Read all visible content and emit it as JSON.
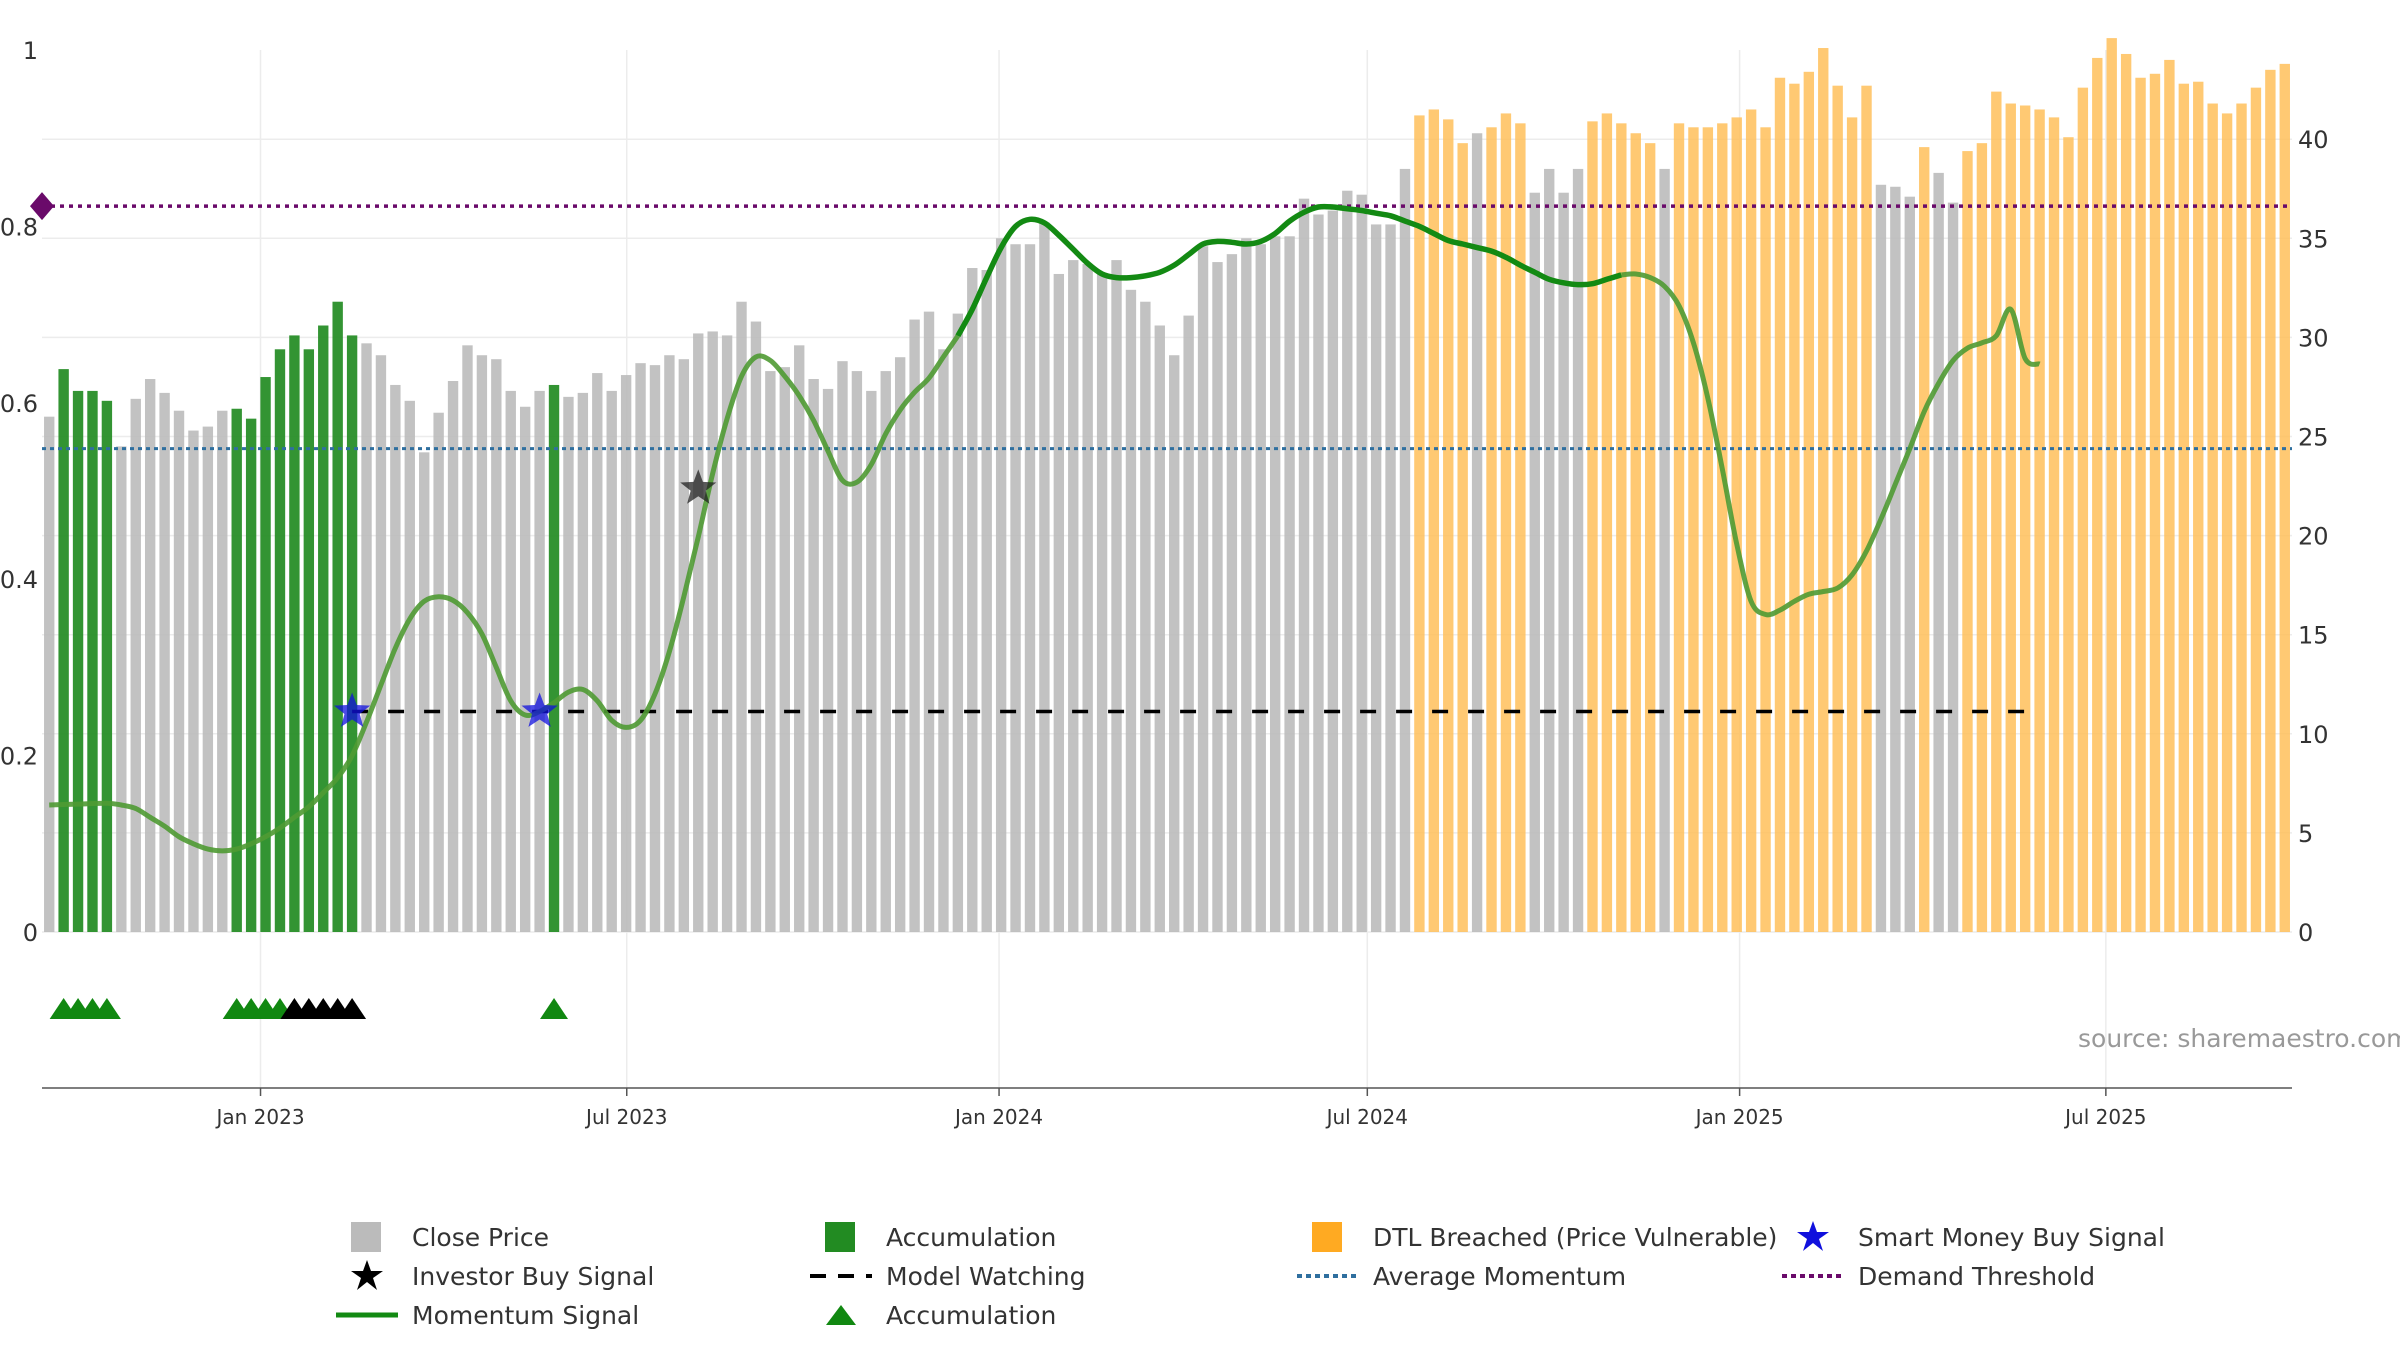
{
  "chart_data": {
    "type": "bar",
    "source_label": "source: sharemaestro.com",
    "left_axis": {
      "ylim": [
        0,
        1
      ],
      "ticks": [
        "0",
        "0.2",
        "0.4",
        "0.6",
        "0.8",
        "1"
      ]
    },
    "right_axis": {
      "ylim": [
        0,
        44.5
      ],
      "ticks": [
        "0",
        "5",
        "10",
        "15",
        "20",
        "25",
        "30",
        "35",
        "40"
      ]
    },
    "x_axis": {
      "start": "2022-09-15",
      "end": "2025-10-01",
      "ticks": [
        {
          "date": "2023-01-01",
          "label": "Jan 2023"
        },
        {
          "date": "2023-07-01",
          "label": "Jul 2023"
        },
        {
          "date": "2024-01-01",
          "label": "Jan 2024"
        },
        {
          "date": "2024-07-01",
          "label": "Jul 2024"
        },
        {
          "date": "2025-01-01",
          "label": "Jan 2025"
        },
        {
          "date": "2025-07-01",
          "label": "Jul 2025"
        }
      ]
    },
    "colors": {
      "close": "#bbbbbb",
      "accumulation": "#228b22",
      "dtl": "#ffc05a",
      "momentum": "#138a13",
      "momentum_faded": "#4f9a33",
      "model_watching": "#000000",
      "average_momentum": "#2f6f9f",
      "demand_threshold": "#6a0a6a",
      "smart_money": "#1010dd",
      "investor": "#222222",
      "triangle": "#118811"
    },
    "bar_states": [
      "close",
      "accumulation",
      "dtl"
    ],
    "bars": [
      [
        0,
        26,
        0
      ],
      [
        1,
        28.4,
        1
      ],
      [
        2,
        27.3,
        1
      ],
      [
        3,
        27.3,
        1
      ],
      [
        4,
        26.8,
        1
      ],
      [
        5,
        24.5,
        0
      ],
      [
        6,
        26.9,
        0
      ],
      [
        7,
        27.9,
        0
      ],
      [
        8,
        27.2,
        0
      ],
      [
        9,
        26.3,
        0
      ],
      [
        10,
        25.3,
        0
      ],
      [
        11,
        25.5,
        0
      ],
      [
        12,
        26.3,
        0
      ],
      [
        13,
        26.4,
        1
      ],
      [
        14,
        25.9,
        1
      ],
      [
        15,
        28,
        1
      ],
      [
        16,
        29.4,
        1
      ],
      [
        17,
        30.1,
        1
      ],
      [
        18,
        29.4,
        1
      ],
      [
        19,
        30.6,
        1
      ],
      [
        20,
        31.8,
        1
      ],
      [
        21,
        30.1,
        1
      ],
      [
        22,
        29.7,
        0
      ],
      [
        23,
        29.1,
        0
      ],
      [
        24,
        27.6,
        0
      ],
      [
        25,
        26.8,
        0
      ],
      [
        26,
        24.2,
        0
      ],
      [
        27,
        26.2,
        0
      ],
      [
        28,
        27.8,
        0
      ],
      [
        29,
        29.6,
        0
      ],
      [
        30,
        29.1,
        0
      ],
      [
        31,
        28.9,
        0
      ],
      [
        32,
        27.3,
        0
      ],
      [
        33,
        26.5,
        0
      ],
      [
        34,
        27.3,
        0
      ],
      [
        35,
        27.6,
        1
      ],
      [
        36,
        27,
        0
      ],
      [
        37,
        27.2,
        0
      ],
      [
        38,
        28.2,
        0
      ],
      [
        39,
        27.3,
        0
      ],
      [
        40,
        28.1,
        0
      ],
      [
        41,
        28.7,
        0
      ],
      [
        42,
        28.6,
        0
      ],
      [
        43,
        29.1,
        0
      ],
      [
        44,
        28.9,
        0
      ],
      [
        45,
        30.2,
        0
      ],
      [
        46,
        30.3,
        0
      ],
      [
        47,
        30.1,
        0
      ],
      [
        48,
        31.8,
        0
      ],
      [
        49,
        30.8,
        0
      ],
      [
        50,
        28.3,
        0
      ],
      [
        51,
        28.5,
        0
      ],
      [
        52,
        29.6,
        0
      ],
      [
        53,
        27.9,
        0
      ],
      [
        54,
        27.4,
        0
      ],
      [
        55,
        28.8,
        0
      ],
      [
        56,
        28.3,
        0
      ],
      [
        57,
        27.3,
        0
      ],
      [
        58,
        28.3,
        0
      ],
      [
        59,
        29,
        0
      ],
      [
        60,
        30.9,
        0
      ],
      [
        61,
        31.3,
        0
      ],
      [
        62,
        29.4,
        0
      ],
      [
        63,
        31.2,
        0
      ],
      [
        64,
        33.5,
        0
      ],
      [
        65,
        33.4,
        0
      ],
      [
        66,
        35,
        0
      ],
      [
        67,
        34.7,
        0
      ],
      [
        68,
        34.7,
        0
      ],
      [
        69,
        35.8,
        0
      ],
      [
        70,
        33.2,
        0
      ],
      [
        71,
        33.9,
        0
      ],
      [
        72,
        33.7,
        0
      ],
      [
        73,
        33.2,
        0
      ],
      [
        74,
        33.9,
        0
      ],
      [
        75,
        32.4,
        0
      ],
      [
        76,
        31.8,
        0
      ],
      [
        77,
        30.6,
        0
      ],
      [
        78,
        29.1,
        0
      ],
      [
        79,
        31.1,
        0
      ],
      [
        80,
        34.6,
        0
      ],
      [
        81,
        33.8,
        0
      ],
      [
        82,
        34.2,
        0
      ],
      [
        83,
        35,
        0
      ],
      [
        84,
        34.7,
        0
      ],
      [
        85,
        35.1,
        0
      ],
      [
        86,
        35.1,
        0
      ],
      [
        87,
        37,
        0
      ],
      [
        88,
        36.2,
        0
      ],
      [
        89,
        36.4,
        0
      ],
      [
        90,
        37.4,
        0
      ],
      [
        91,
        37.2,
        0
      ],
      [
        92,
        35.7,
        0
      ],
      [
        93,
        35.7,
        0
      ],
      [
        94,
        38.5,
        0
      ],
      [
        95,
        41.2,
        2
      ],
      [
        96,
        41.5,
        2
      ],
      [
        97,
        41,
        2
      ],
      [
        98,
        39.8,
        2
      ],
      [
        99,
        40.3,
        0
      ],
      [
        100,
        40.6,
        2
      ],
      [
        101,
        41.3,
        2
      ],
      [
        102,
        40.8,
        2
      ],
      [
        103,
        37.3,
        0
      ],
      [
        104,
        38.5,
        0
      ],
      [
        105,
        37.3,
        0
      ],
      [
        106,
        38.5,
        0
      ],
      [
        107,
        40.9,
        2
      ],
      [
        108,
        41.3,
        2
      ],
      [
        109,
        40.8,
        2
      ],
      [
        110,
        40.3,
        2
      ],
      [
        111,
        39.8,
        2
      ],
      [
        112,
        38.5,
        0
      ],
      [
        113,
        40.8,
        2
      ],
      [
        114,
        40.6,
        2
      ],
      [
        115,
        40.6,
        2
      ],
      [
        116,
        40.8,
        2
      ],
      [
        117,
        41.1,
        2
      ],
      [
        118,
        41.5,
        2
      ],
      [
        119,
        40.6,
        2
      ],
      [
        120,
        43.1,
        2
      ],
      [
        121,
        42.8,
        2
      ],
      [
        122,
        43.4,
        2
      ],
      [
        123,
        44.6,
        2
      ],
      [
        124,
        42.7,
        2
      ],
      [
        125,
        41.1,
        2
      ],
      [
        126,
        42.7,
        2
      ],
      [
        127,
        37.7,
        0
      ],
      [
        128,
        37.6,
        0
      ],
      [
        129,
        37.1,
        0
      ],
      [
        130,
        39.6,
        2
      ],
      [
        131,
        38.3,
        0
      ],
      [
        132,
        36.8,
        0
      ],
      [
        133,
        39.4,
        2
      ],
      [
        134,
        39.8,
        2
      ],
      [
        135,
        42.4,
        2
      ],
      [
        136,
        41.8,
        2
      ],
      [
        137,
        41.7,
        2
      ],
      [
        138,
        41.5,
        2
      ],
      [
        139,
        41.1,
        2
      ],
      [
        140,
        40.1,
        2
      ],
      [
        141,
        42.6,
        2
      ],
      [
        142,
        44.1,
        2
      ],
      [
        143,
        45.1,
        2
      ],
      [
        144,
        44.3,
        2
      ],
      [
        145,
        43.1,
        2
      ],
      [
        146,
        43.3,
        2
      ],
      [
        147,
        44,
        2
      ],
      [
        148,
        42.8,
        2
      ],
      [
        149,
        42.9,
        2
      ],
      [
        150,
        41.8,
        2
      ],
      [
        151,
        41.3,
        2
      ],
      [
        152,
        41.8,
        2
      ],
      [
        153,
        42.6,
        2
      ],
      [
        154,
        43.5,
        2
      ],
      [
        155,
        43.8,
        2
      ]
    ],
    "momentum": [
      [
        0,
        0.144
      ],
      [
        2,
        0.145
      ],
      [
        4,
        0.146
      ],
      [
        5,
        0.144
      ],
      [
        6,
        0.14
      ],
      [
        7,
        0.13
      ],
      [
        8,
        0.12
      ],
      [
        9,
        0.108
      ],
      [
        10,
        0.1
      ],
      [
        11,
        0.094
      ],
      [
        12,
        0.092
      ],
      [
        13,
        0.094
      ],
      [
        14,
        0.1
      ],
      [
        15,
        0.108
      ],
      [
        16,
        0.118
      ],
      [
        17,
        0.13
      ],
      [
        18,
        0.142
      ],
      [
        19,
        0.158
      ],
      [
        20,
        0.175
      ],
      [
        21,
        0.2
      ],
      [
        22,
        0.238
      ],
      [
        23,
        0.28
      ],
      [
        24,
        0.322
      ],
      [
        25,
        0.355
      ],
      [
        26,
        0.375
      ],
      [
        27,
        0.38
      ],
      [
        28,
        0.376
      ],
      [
        29,
        0.362
      ],
      [
        30,
        0.338
      ],
      [
        31,
        0.3
      ],
      [
        32,
        0.262
      ],
      [
        33,
        0.246
      ],
      [
        34,
        0.25
      ],
      [
        35,
        0.26
      ],
      [
        36,
        0.272
      ],
      [
        37,
        0.275
      ],
      [
        38,
        0.262
      ],
      [
        39,
        0.24
      ],
      [
        40,
        0.232
      ],
      [
        41,
        0.24
      ],
      [
        42,
        0.27
      ],
      [
        43,
        0.318
      ],
      [
        44,
        0.38
      ],
      [
        45,
        0.448
      ],
      [
        46,
        0.52
      ],
      [
        47,
        0.582
      ],
      [
        48,
        0.63
      ],
      [
        49,
        0.652
      ],
      [
        50,
        0.648
      ],
      [
        51,
        0.63
      ],
      [
        52,
        0.608
      ],
      [
        53,
        0.58
      ],
      [
        54,
        0.545
      ],
      [
        55,
        0.512
      ],
      [
        56,
        0.51
      ],
      [
        57,
        0.53
      ],
      [
        58,
        0.565
      ],
      [
        59,
        0.592
      ],
      [
        60,
        0.612
      ],
      [
        61,
        0.628
      ],
      [
        62,
        0.652
      ],
      [
        63,
        0.676
      ],
      [
        64,
        0.706
      ],
      [
        65,
        0.742
      ],
      [
        66,
        0.776
      ],
      [
        67,
        0.8
      ],
      [
        68,
        0.808
      ],
      [
        69,
        0.804
      ],
      [
        70,
        0.79
      ],
      [
        71,
        0.774
      ],
      [
        72,
        0.758
      ],
      [
        73,
        0.746
      ],
      [
        74,
        0.742
      ],
      [
        75,
        0.742
      ],
      [
        76,
        0.744
      ],
      [
        77,
        0.748
      ],
      [
        78,
        0.756
      ],
      [
        79,
        0.768
      ],
      [
        80,
        0.78
      ],
      [
        81,
        0.783
      ],
      [
        82,
        0.782
      ],
      [
        83,
        0.78
      ],
      [
        84,
        0.783
      ],
      [
        85,
        0.792
      ],
      [
        86,
        0.806
      ],
      [
        87,
        0.816
      ],
      [
        88,
        0.822
      ],
      [
        89,
        0.822
      ],
      [
        90,
        0.82
      ],
      [
        91,
        0.818
      ],
      [
        92,
        0.815
      ],
      [
        93,
        0.812
      ],
      [
        94,
        0.806
      ],
      [
        95,
        0.8
      ],
      [
        96,
        0.792
      ],
      [
        97,
        0.784
      ],
      [
        98,
        0.78
      ],
      [
        99,
        0.776
      ],
      [
        100,
        0.772
      ],
      [
        101,
        0.765
      ],
      [
        102,
        0.756
      ],
      [
        103,
        0.748
      ],
      [
        104,
        0.74
      ],
      [
        105,
        0.736
      ],
      [
        106,
        0.734
      ],
      [
        107,
        0.735
      ],
      [
        108,
        0.74
      ],
      [
        109,
        0.745
      ],
      [
        110,
        0.746
      ],
      [
        111,
        0.742
      ],
      [
        112,
        0.732
      ],
      [
        113,
        0.71
      ],
      [
        114,
        0.668
      ],
      [
        115,
        0.605
      ],
      [
        116,
        0.525
      ],
      [
        117,
        0.44
      ],
      [
        118,
        0.375
      ],
      [
        119,
        0.36
      ],
      [
        120,
        0.365
      ],
      [
        121,
        0.375
      ],
      [
        122,
        0.383
      ],
      [
        123,
        0.386
      ],
      [
        124,
        0.39
      ],
      [
        125,
        0.405
      ],
      [
        126,
        0.432
      ],
      [
        127,
        0.468
      ],
      [
        128,
        0.508
      ],
      [
        129,
        0.548
      ],
      [
        130,
        0.59
      ],
      [
        131,
        0.622
      ],
      [
        132,
        0.648
      ],
      [
        133,
        0.662
      ],
      [
        134,
        0.668
      ],
      [
        135,
        0.676
      ],
      [
        136,
        0.706
      ],
      [
        137,
        0.65
      ],
      [
        138,
        0.644
      ]
    ],
    "momentum_faded_ranges": [
      [
        0,
        62
      ],
      [
        109,
        138
      ]
    ],
    "average_momentum": 0.548,
    "demand_threshold": 0.823,
    "model_watching": {
      "from": 21,
      "to": 138,
      "value": 0.25
    },
    "smart_money_signals": [
      [
        21,
        0.25
      ],
      [
        34,
        0.25
      ]
    ],
    "investor_signals": [
      [
        45,
        0.503
      ]
    ],
    "accumulation_triangles": [
      1,
      2,
      3,
      4,
      13,
      14,
      15,
      16,
      35
    ],
    "investor_triangles": [
      17,
      18,
      19,
      20,
      21
    ],
    "legend": [
      {
        "key": "close",
        "label": "Close Price"
      },
      {
        "key": "accumulation",
        "label": "Accumulation"
      },
      {
        "key": "dtl",
        "label": "DTL Breached (Price Vulnerable)"
      },
      {
        "key": "smart_money",
        "label": "Smart Money Buy Signal"
      },
      {
        "key": "investor",
        "label": "Investor Buy Signal"
      },
      {
        "key": "model_watching",
        "label": "Model Watching"
      },
      {
        "key": "average_momentum",
        "label": "Average Momentum"
      },
      {
        "key": "demand_threshold",
        "label": "Demand Threshold"
      },
      {
        "key": "momentum",
        "label": "Momentum Signal"
      },
      {
        "key": "accumulation_triangle",
        "label": "Accumulation"
      }
    ]
  }
}
